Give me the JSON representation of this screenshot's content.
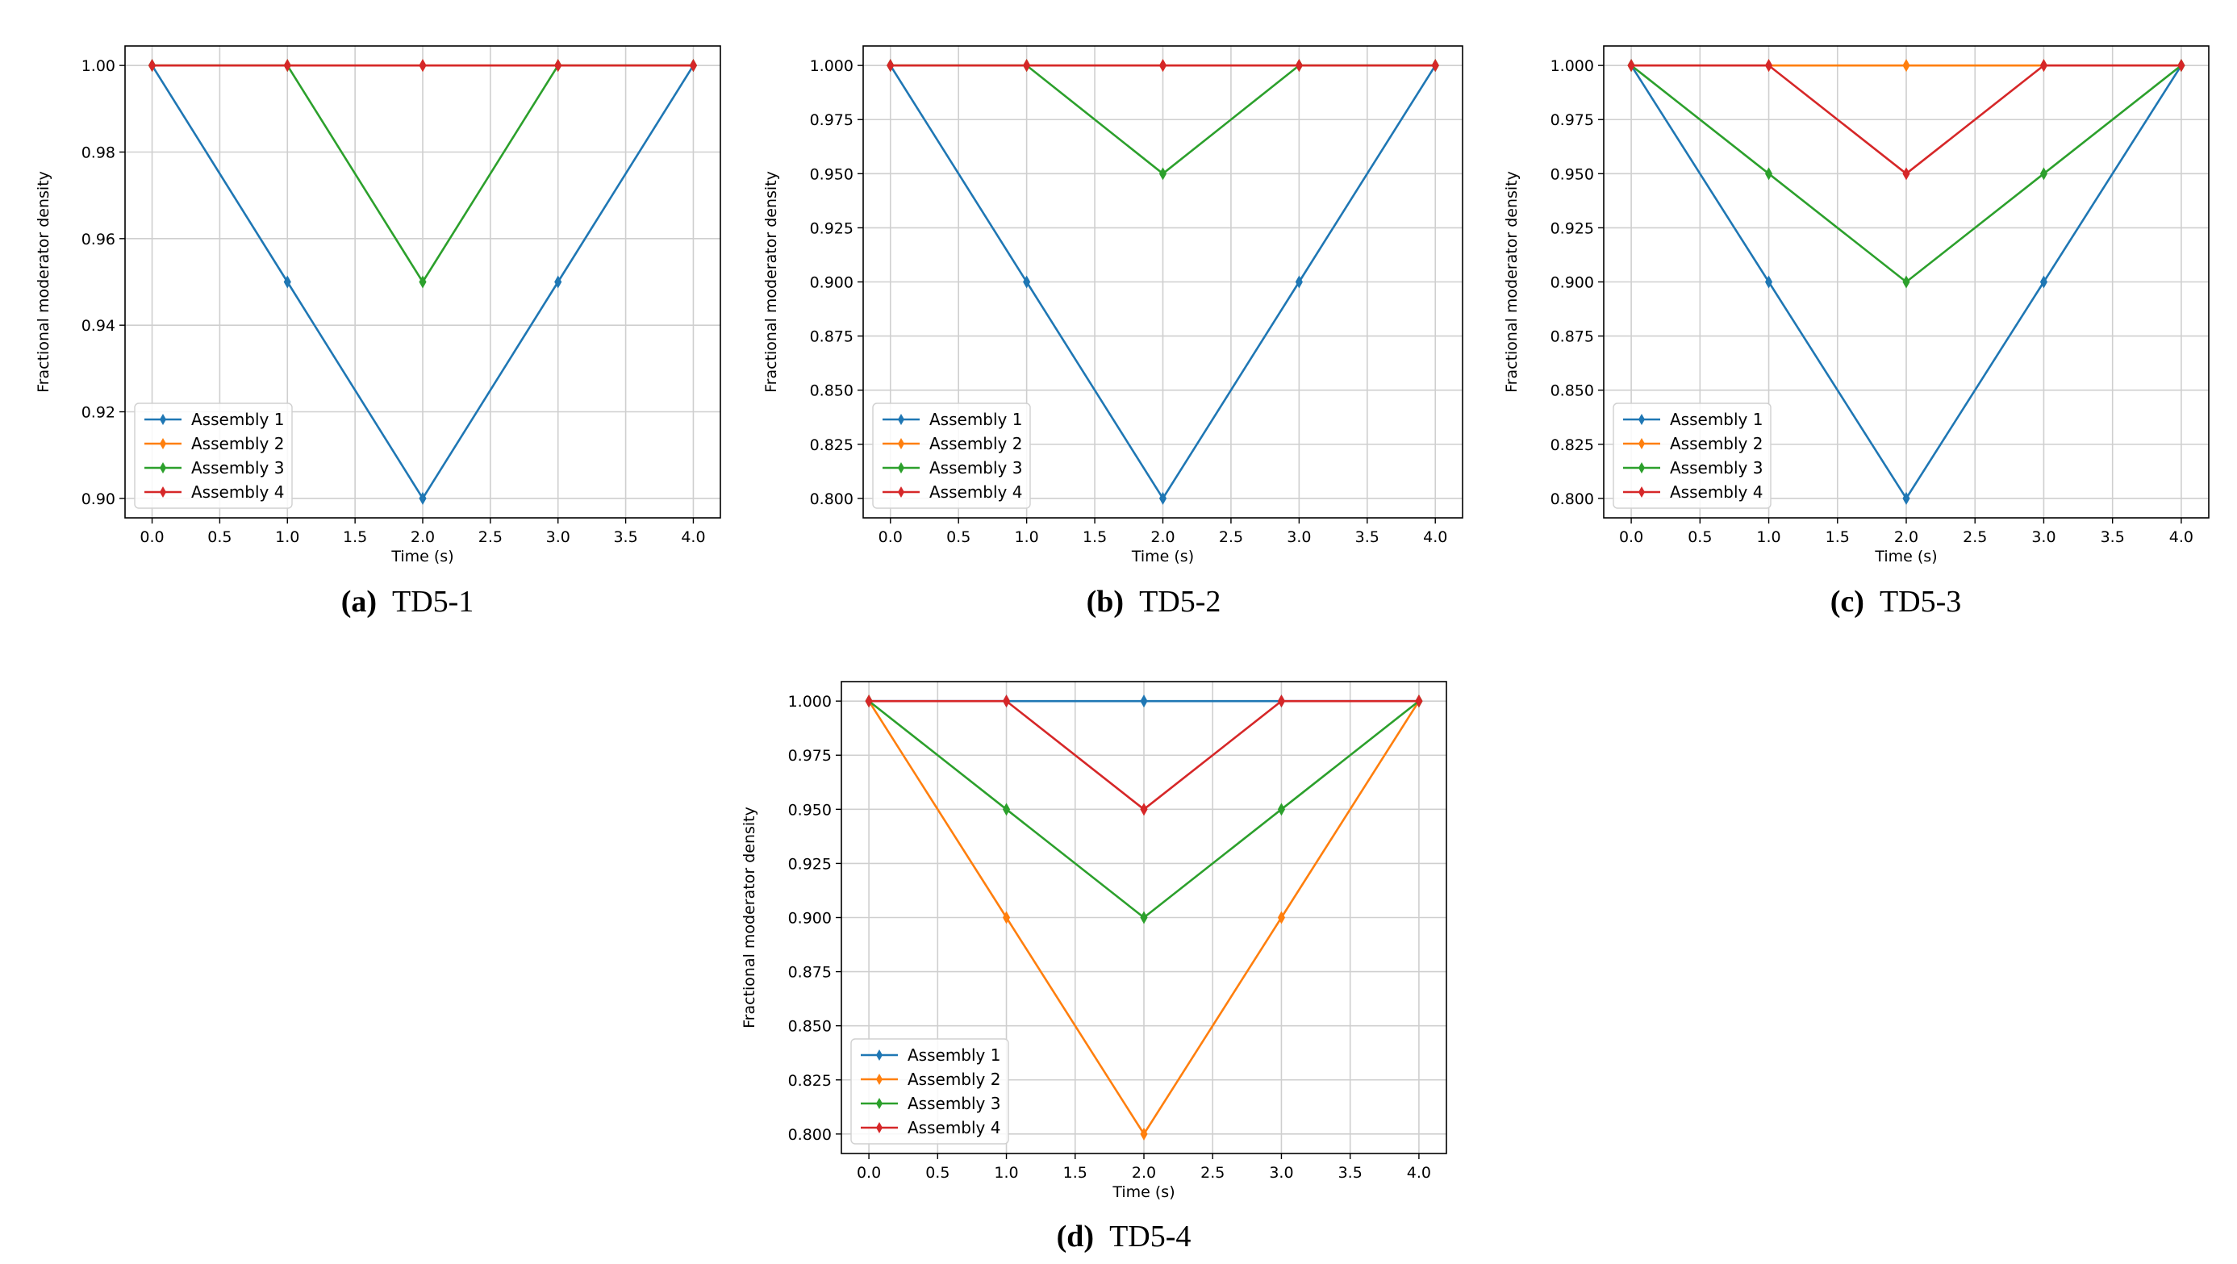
{
  "colors": {
    "Assembly 1": "#1f77b4",
    "Assembly 2": "#ff7f0e",
    "Assembly 3": "#2ca02c",
    "Assembly 4": "#d62728",
    "grid": "#cfcfcf",
    "axes": "#000000"
  },
  "chart_data": [
    {
      "type": "line",
      "caption_tag": "(a)",
      "caption_text": "TD5-1",
      "xlabel": "Time (s)",
      "ylabel": "Fractional moderator density",
      "xlim": [
        -0.2,
        4.2
      ],
      "ylim": [
        0.8955,
        1.0045
      ],
      "xticks": [
        0.0,
        0.5,
        1.0,
        1.5,
        2.0,
        2.5,
        3.0,
        3.5,
        4.0
      ],
      "yticks": [
        0.9,
        0.92,
        0.94,
        0.96,
        0.98,
        1.0
      ],
      "ytick_decimals": 2,
      "grid": true,
      "legend": "lower-left",
      "x": [
        0,
        1,
        2,
        3,
        4
      ],
      "series": [
        {
          "name": "Assembly 1",
          "values": [
            1.0,
            0.95,
            0.9,
            0.95,
            1.0
          ]
        },
        {
          "name": "Assembly 2",
          "values": [
            1.0,
            1.0,
            1.0,
            1.0,
            1.0
          ]
        },
        {
          "name": "Assembly 3",
          "values": [
            1.0,
            1.0,
            0.95,
            1.0,
            1.0
          ]
        },
        {
          "name": "Assembly 4",
          "values": [
            1.0,
            1.0,
            1.0,
            1.0,
            1.0
          ]
        }
      ]
    },
    {
      "type": "line",
      "caption_tag": "(b)",
      "caption_text": "TD5-2",
      "xlabel": "Time (s)",
      "ylabel": "Fractional moderator density",
      "xlim": [
        -0.2,
        4.2
      ],
      "ylim": [
        0.791,
        1.009
      ],
      "xticks": [
        0.0,
        0.5,
        1.0,
        1.5,
        2.0,
        2.5,
        3.0,
        3.5,
        4.0
      ],
      "yticks": [
        0.8,
        0.825,
        0.85,
        0.875,
        0.9,
        0.925,
        0.95,
        0.975,
        1.0
      ],
      "ytick_decimals": 3,
      "grid": true,
      "legend": "lower-left",
      "x": [
        0,
        1,
        2,
        3,
        4
      ],
      "series": [
        {
          "name": "Assembly 1",
          "values": [
            1.0,
            0.9,
            0.8,
            0.9,
            1.0
          ]
        },
        {
          "name": "Assembly 2",
          "values": [
            1.0,
            1.0,
            1.0,
            1.0,
            1.0
          ]
        },
        {
          "name": "Assembly 3",
          "values": [
            1.0,
            1.0,
            0.95,
            1.0,
            1.0
          ]
        },
        {
          "name": "Assembly 4",
          "values": [
            1.0,
            1.0,
            1.0,
            1.0,
            1.0
          ]
        }
      ]
    },
    {
      "type": "line",
      "caption_tag": "(c)",
      "caption_text": "TD5-3",
      "xlabel": "Time (s)",
      "ylabel": "Fractional moderator density",
      "xlim": [
        -0.2,
        4.2
      ],
      "ylim": [
        0.791,
        1.009
      ],
      "xticks": [
        0.0,
        0.5,
        1.0,
        1.5,
        2.0,
        2.5,
        3.0,
        3.5,
        4.0
      ],
      "yticks": [
        0.8,
        0.825,
        0.85,
        0.875,
        0.9,
        0.925,
        0.95,
        0.975,
        1.0
      ],
      "ytick_decimals": 3,
      "grid": true,
      "legend": "lower-left",
      "x": [
        0,
        1,
        2,
        3,
        4
      ],
      "series": [
        {
          "name": "Assembly 1",
          "values": [
            1.0,
            0.9,
            0.8,
            0.9,
            1.0
          ]
        },
        {
          "name": "Assembly 2",
          "values": [
            1.0,
            1.0,
            1.0,
            1.0,
            1.0
          ]
        },
        {
          "name": "Assembly 3",
          "values": [
            1.0,
            0.95,
            0.9,
            0.95,
            1.0
          ]
        },
        {
          "name": "Assembly 4",
          "values": [
            1.0,
            1.0,
            0.95,
            1.0,
            1.0
          ]
        }
      ]
    },
    {
      "type": "line",
      "caption_tag": "(d)",
      "caption_text": "TD5-4",
      "xlabel": "Time (s)",
      "ylabel": "Fractional moderator density",
      "xlim": [
        -0.2,
        4.2
      ],
      "ylim": [
        0.791,
        1.009
      ],
      "xticks": [
        0.0,
        0.5,
        1.0,
        1.5,
        2.0,
        2.5,
        3.0,
        3.5,
        4.0
      ],
      "yticks": [
        0.8,
        0.825,
        0.85,
        0.875,
        0.9,
        0.925,
        0.95,
        0.975,
        1.0
      ],
      "ytick_decimals": 3,
      "grid": true,
      "legend": "lower-left",
      "x": [
        0,
        1,
        2,
        3,
        4
      ],
      "series": [
        {
          "name": "Assembly 1",
          "values": [
            1.0,
            1.0,
            1.0,
            1.0,
            1.0
          ]
        },
        {
          "name": "Assembly 2",
          "values": [
            1.0,
            0.9,
            0.8,
            0.9,
            1.0
          ]
        },
        {
          "name": "Assembly 3",
          "values": [
            1.0,
            0.95,
            0.9,
            0.95,
            1.0
          ]
        },
        {
          "name": "Assembly 4",
          "values": [
            1.0,
            1.0,
            0.95,
            1.0,
            1.0
          ]
        }
      ]
    }
  ]
}
